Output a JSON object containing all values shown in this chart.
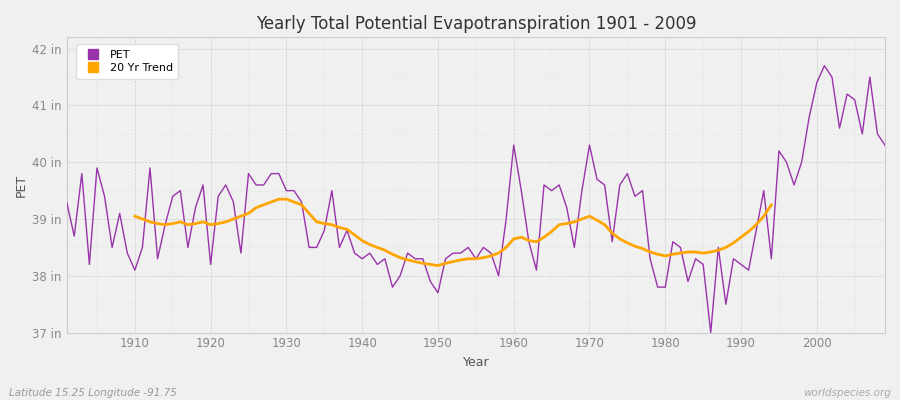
{
  "title": "Yearly Total Potential Evapotranspiration 1901 - 2009",
  "xlabel": "Year",
  "ylabel": "PET",
  "subtitle_left": "Latitude 15.25 Longitude -91.75",
  "subtitle_right": "worldspecies.org",
  "pet_color": "#9933AA",
  "trend_color": "#FFA500",
  "bg_color": "#f0f0f0",
  "plot_bg_color": "#f0f0f0",
  "ylim": [
    37,
    42.2
  ],
  "yticks": [
    37,
    38,
    39,
    40,
    41,
    42
  ],
  "ytick_labels": [
    "37 in",
    "38 in",
    "39 in",
    "40 in",
    "41 in",
    "42 in"
  ],
  "xlim": [
    1901,
    2009
  ],
  "xticks": [
    1910,
    1920,
    1930,
    1940,
    1950,
    1960,
    1970,
    1980,
    1990,
    2000
  ],
  "years": [
    1901,
    1902,
    1903,
    1904,
    1905,
    1906,
    1907,
    1908,
    1909,
    1910,
    1911,
    1912,
    1913,
    1914,
    1915,
    1916,
    1917,
    1918,
    1919,
    1920,
    1921,
    1922,
    1923,
    1924,
    1925,
    1926,
    1927,
    1928,
    1929,
    1930,
    1931,
    1932,
    1933,
    1934,
    1935,
    1936,
    1937,
    1938,
    1939,
    1940,
    1941,
    1942,
    1943,
    1944,
    1945,
    1946,
    1947,
    1948,
    1949,
    1950,
    1951,
    1952,
    1953,
    1954,
    1955,
    1956,
    1957,
    1958,
    1959,
    1960,
    1961,
    1962,
    1963,
    1964,
    1965,
    1966,
    1967,
    1968,
    1969,
    1970,
    1971,
    1972,
    1973,
    1974,
    1975,
    1976,
    1977,
    1978,
    1979,
    1980,
    1981,
    1982,
    1983,
    1984,
    1985,
    1986,
    1987,
    1988,
    1989,
    1990,
    1991,
    1992,
    1993,
    1994,
    1995,
    1996,
    1997,
    1998,
    1999,
    2000,
    2001,
    2002,
    2003,
    2004,
    2005,
    2006,
    2007,
    2008,
    2009
  ],
  "pet_values": [
    39.3,
    38.7,
    39.8,
    38.2,
    39.9,
    39.4,
    38.5,
    39.1,
    38.4,
    38.1,
    38.5,
    39.9,
    38.3,
    38.9,
    39.4,
    39.5,
    38.5,
    39.2,
    39.6,
    38.2,
    39.4,
    39.6,
    39.3,
    38.4,
    39.8,
    39.6,
    39.6,
    39.8,
    39.8,
    39.5,
    39.5,
    39.3,
    38.5,
    38.5,
    38.8,
    39.5,
    38.5,
    38.8,
    38.4,
    38.3,
    38.4,
    38.2,
    38.3,
    37.8,
    38.0,
    38.4,
    38.3,
    38.3,
    37.9,
    37.7,
    38.3,
    38.4,
    38.4,
    38.5,
    38.3,
    38.5,
    38.4,
    38.0,
    39.0,
    40.3,
    39.5,
    38.6,
    38.1,
    39.6,
    39.5,
    39.6,
    39.2,
    38.5,
    39.5,
    40.3,
    39.7,
    39.6,
    38.6,
    39.6,
    39.8,
    39.4,
    39.5,
    38.3,
    37.8,
    37.8,
    38.6,
    38.5,
    37.9,
    38.3,
    38.2,
    37.0,
    38.5,
    37.5,
    38.3,
    38.2,
    38.1,
    38.8,
    39.5,
    38.3,
    40.2,
    40.0,
    39.6,
    40.0,
    40.8,
    41.4,
    41.7,
    41.5,
    40.6,
    41.2,
    41.1,
    40.5,
    41.5,
    40.5,
    40.3
  ],
  "trend_values": [
    null,
    null,
    null,
    null,
    null,
    null,
    null,
    null,
    null,
    39.05,
    39.0,
    38.95,
    38.92,
    38.9,
    38.92,
    38.95,
    38.9,
    38.92,
    38.95,
    38.9,
    38.92,
    38.95,
    39.0,
    39.05,
    39.1,
    39.2,
    39.25,
    39.3,
    39.35,
    39.35,
    39.3,
    39.25,
    39.1,
    38.95,
    38.92,
    38.9,
    38.85,
    38.82,
    38.72,
    38.62,
    38.55,
    38.5,
    38.45,
    38.38,
    38.32,
    38.28,
    38.25,
    38.22,
    38.2,
    38.18,
    38.22,
    38.25,
    38.28,
    38.3,
    38.3,
    38.32,
    38.35,
    38.4,
    38.5,
    38.65,
    38.68,
    38.62,
    38.6,
    38.68,
    38.78,
    38.9,
    38.92,
    38.95,
    39.0,
    39.05,
    38.98,
    38.9,
    38.75,
    38.65,
    38.58,
    38.52,
    38.48,
    38.42,
    38.38,
    38.35,
    38.38,
    38.4,
    38.42,
    38.42,
    38.4,
    38.42,
    38.45,
    38.5,
    38.58,
    38.68,
    38.78,
    38.9,
    39.05,
    39.25,
    null,
    null,
    null,
    null,
    null,
    null,
    null,
    null,
    null
  ]
}
